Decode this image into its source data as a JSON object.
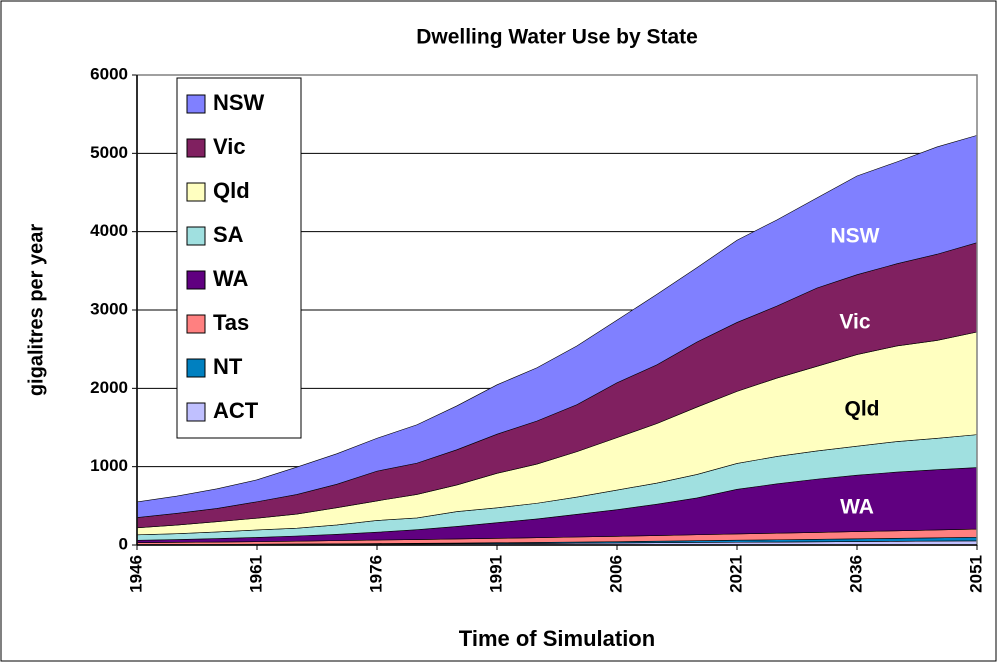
{
  "chart_data": {
    "type": "stacked_area",
    "title": "Dwelling Water Use by State",
    "x_label": "Time of Simulation",
    "y_label": "gigalitres per year",
    "x": [
      1946,
      1951,
      1956,
      1961,
      1966,
      1971,
      1976,
      1981,
      1986,
      1991,
      1996,
      2001,
      2006,
      2011,
      2016,
      2021,
      2026,
      2031,
      2036,
      2041,
      2046,
      2051
    ],
    "xlim": [
      1946,
      2051
    ],
    "xticks": [
      1946,
      1961,
      1976,
      1991,
      2006,
      2021,
      2036,
      2051
    ],
    "ylim": [
      0,
      6000
    ],
    "yticks": [
      0,
      1000,
      2000,
      3000,
      4000,
      5000,
      6000
    ],
    "grid": true,
    "legend": "upper left",
    "series": [
      {
        "name": "ACT",
        "color": "#c0c0ff",
        "values": [
          3,
          4,
          5,
          6,
          8,
          10,
          12,
          14,
          16,
          18,
          20,
          23,
          26,
          29,
          32,
          35,
          38,
          41,
          44,
          47,
          50,
          53
        ]
      },
      {
        "name": "NT",
        "color": "#0080c0",
        "values": [
          2,
          3,
          3,
          4,
          5,
          6,
          7,
          8,
          9,
          11,
          13,
          15,
          17,
          20,
          23,
          26,
          29,
          32,
          35,
          38,
          42,
          46
        ]
      },
      {
        "name": "Tas",
        "color": "#ff8080",
        "values": [
          25,
          27,
          30,
          33,
          36,
          40,
          44,
          48,
          52,
          56,
          60,
          64,
          68,
          72,
          76,
          80,
          84,
          88,
          92,
          96,
          100,
          105
        ]
      },
      {
        "name": "WA",
        "color": "#600080",
        "values": [
          30,
          36,
          44,
          54,
          66,
          80,
          100,
          125,
          160,
          200,
          240,
          290,
          340,
          400,
          470,
          570,
          630,
          680,
          720,
          750,
          770,
          785
        ]
      },
      {
        "name": "SA",
        "color": "#a0e0e0",
        "values": [
          70,
          75,
          85,
          95,
          100,
          120,
          150,
          150,
          190,
          190,
          200,
          220,
          250,
          270,
          300,
          330,
          350,
          360,
          370,
          390,
          400,
          420
        ]
      },
      {
        "name": "Qld",
        "color": "#ffffc0",
        "values": [
          90,
          110,
          130,
          150,
          180,
          220,
          250,
          300,
          340,
          440,
          500,
          580,
          670,
          760,
          860,
          920,
          1000,
          1080,
          1170,
          1220,
          1250,
          1310
        ]
      },
      {
        "name": "Vic",
        "color": "#802060",
        "values": [
          130,
          150,
          170,
          210,
          250,
          300,
          380,
          400,
          450,
          500,
          550,
          600,
          700,
          750,
          830,
          880,
          920,
          1000,
          1020,
          1050,
          1100,
          1140
        ]
      },
      {
        "name": "NSW",
        "color": "#8080ff",
        "values": [
          200,
          220,
          250,
          280,
          350,
          390,
          420,
          490,
          560,
          630,
          680,
          750,
          800,
          900,
          950,
          1050,
          1100,
          1150,
          1260,
          1300,
          1370,
          1370
        ]
      }
    ],
    "annotations": [
      "NSW",
      "Vic",
      "Qld",
      "WA"
    ]
  }
}
